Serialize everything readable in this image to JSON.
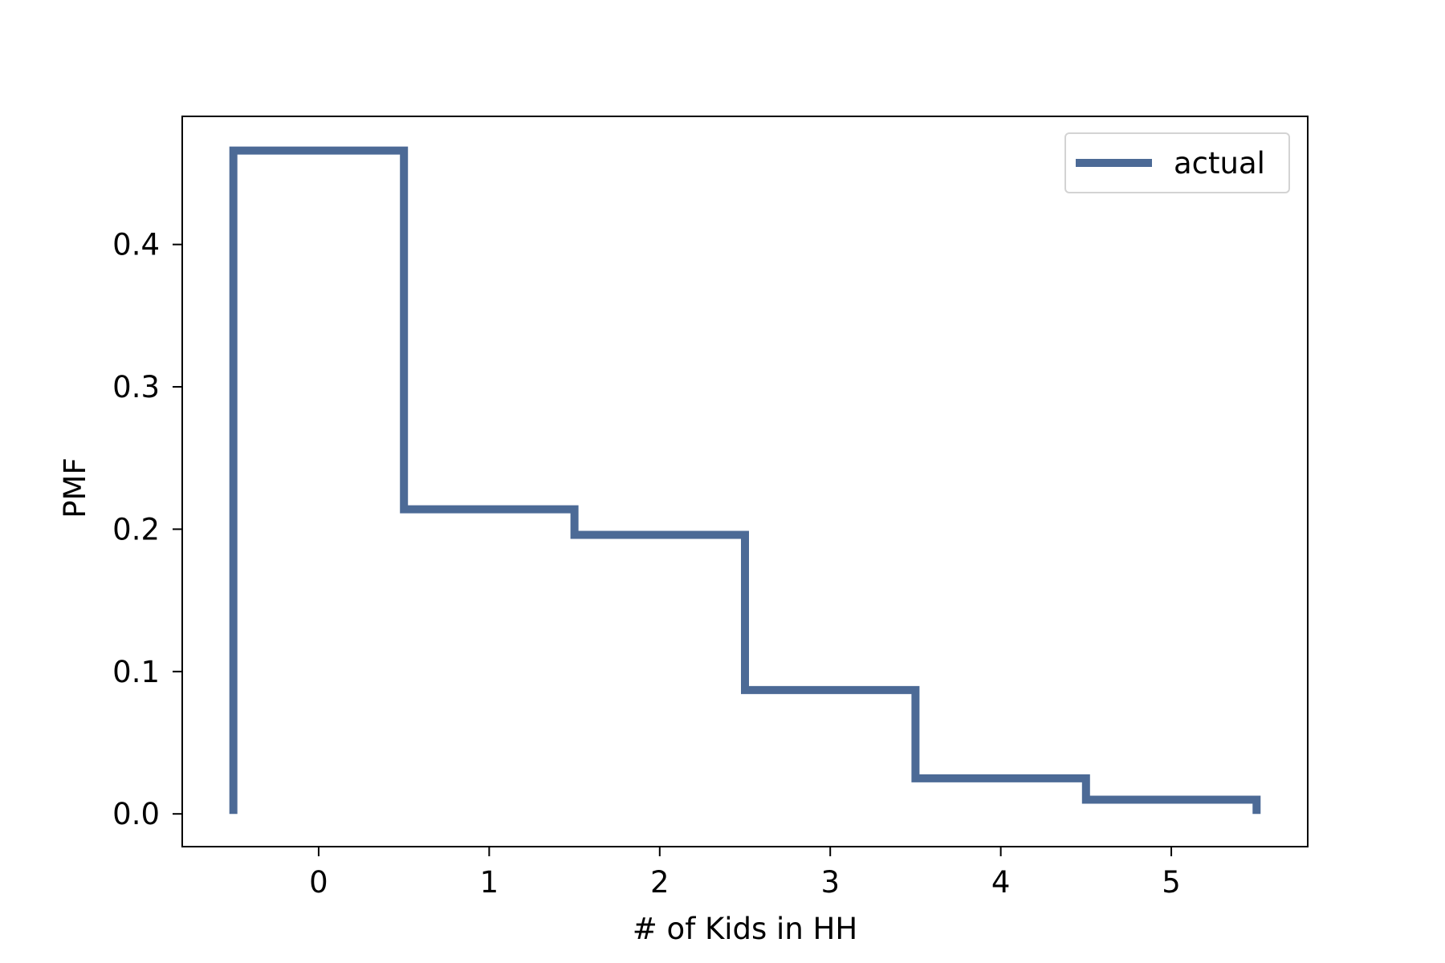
{
  "chart_data": {
    "type": "line",
    "step": "mid",
    "xlabel": "# of Kids in HH",
    "ylabel": "PMF",
    "x": [
      0,
      1,
      2,
      3,
      4,
      5
    ],
    "x_ticks": [
      "0",
      "1",
      "2",
      "3",
      "4",
      "5"
    ],
    "y_ticks": [
      "0.0",
      "0.1",
      "0.2",
      "0.3",
      "0.4"
    ],
    "xlim": [
      -0.8,
      5.8
    ],
    "ylim": [
      -0.023,
      0.49
    ],
    "legend_location": "upper right",
    "series": [
      {
        "name": "actual",
        "color": "#4c6a96",
        "values": [
          0.466,
          0.214,
          0.196,
          0.087,
          0.025,
          0.01
        ]
      }
    ]
  }
}
